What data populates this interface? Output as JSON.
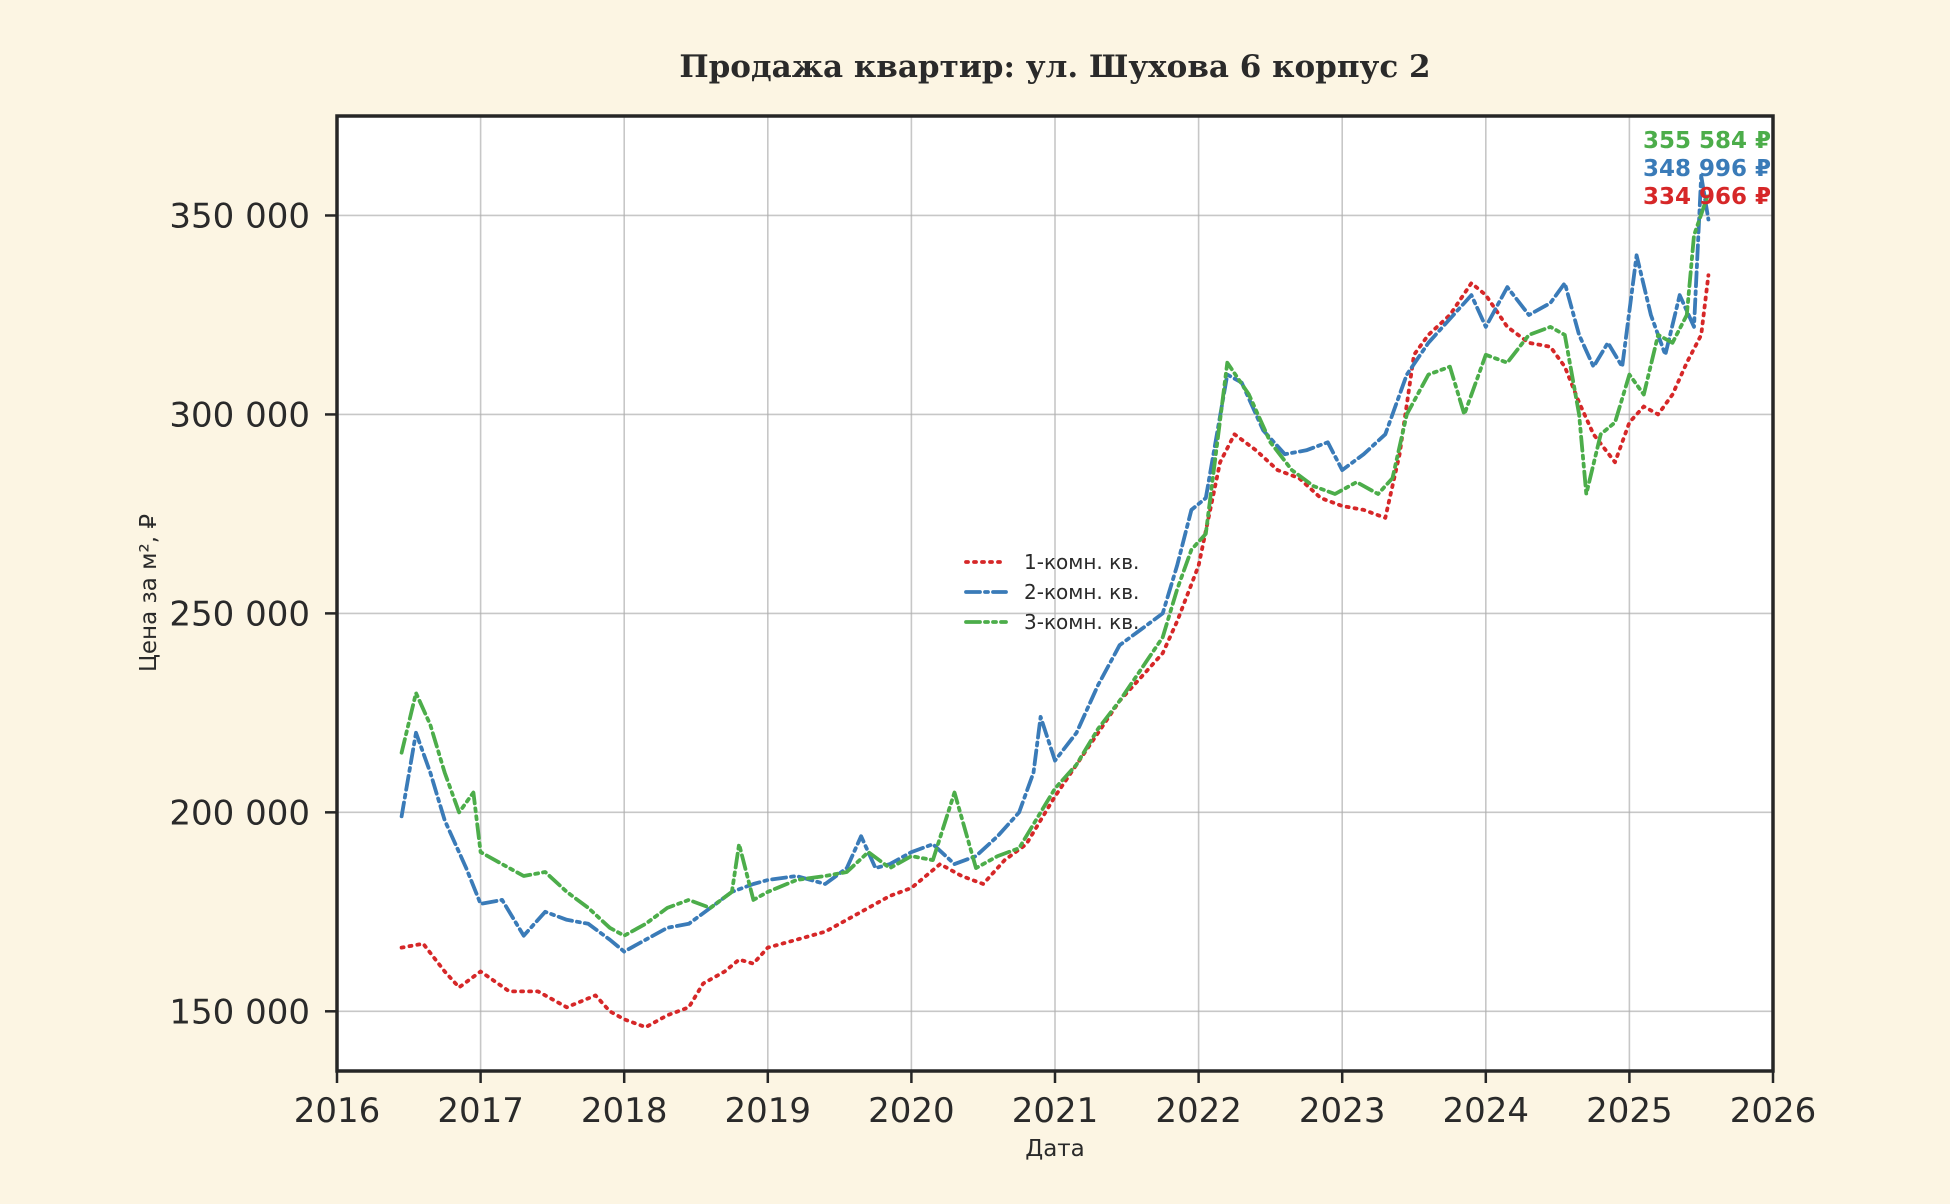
{
  "chart_data": {
    "type": "line",
    "title": "Продажа квартир: ул. Шухова 6 корпус 2",
    "xlabel": "Дата",
    "ylabel": "Цена за м², ₽",
    "xlim": [
      2016,
      2026
    ],
    "ylim": [
      135000,
      375000
    ],
    "grid": true,
    "legend_position": "center",
    "x_ticks": [
      2016,
      2017,
      2018,
      2019,
      2020,
      2021,
      2022,
      2023,
      2024,
      2025,
      2026
    ],
    "x_tick_labels": [
      "2016",
      "2017",
      "2018",
      "2019",
      "2020",
      "2021",
      "2022",
      "2023",
      "2024",
      "2025",
      "2026"
    ],
    "y_ticks": [
      150000,
      200000,
      250000,
      300000,
      350000
    ],
    "y_tick_labels": [
      "150 000",
      "200 000",
      "250 000",
      "300 000",
      "350 000"
    ],
    "series": [
      {
        "name": "1-комн. кв.",
        "color": "#d62728",
        "style": "dotted",
        "end_label": "334 966 ₽",
        "x": [
          2016.45,
          2016.6,
          2016.75,
          2016.85,
          2017.0,
          2017.2,
          2017.4,
          2017.6,
          2017.8,
          2017.9,
          2018.0,
          2018.15,
          2018.3,
          2018.45,
          2018.55,
          2018.7,
          2018.8,
          2018.9,
          2019.0,
          2019.2,
          2019.4,
          2019.55,
          2019.7,
          2019.85,
          2020.0,
          2020.2,
          2020.35,
          2020.5,
          2020.65,
          2020.8,
          2020.9,
          2021.0,
          2021.15,
          2021.3,
          2021.45,
          2021.6,
          2021.75,
          2021.85,
          2022.0,
          2022.15,
          2022.25,
          2022.4,
          2022.55,
          2022.7,
          2022.85,
          2023.0,
          2023.15,
          2023.3,
          2023.4,
          2023.5,
          2023.6,
          2023.75,
          2023.9,
          2024.0,
          2024.15,
          2024.3,
          2024.45,
          2024.55,
          2024.65,
          2024.75,
          2024.9,
          2025.0,
          2025.1,
          2025.2,
          2025.3,
          2025.4,
          2025.5,
          2025.55
        ],
        "y": [
          166000,
          167000,
          160000,
          156000,
          160000,
          155000,
          155000,
          151000,
          154000,
          150000,
          148000,
          146000,
          149000,
          151000,
          157000,
          160000,
          163000,
          162000,
          166000,
          168000,
          170000,
          173000,
          176000,
          179000,
          181000,
          187000,
          184000,
          182000,
          188000,
          192000,
          198000,
          204000,
          212000,
          220000,
          228000,
          234000,
          240000,
          248000,
          262000,
          288000,
          295000,
          291000,
          286000,
          284000,
          279000,
          277000,
          276000,
          274000,
          290000,
          315000,
          320000,
          325000,
          333000,
          330000,
          322000,
          318000,
          317000,
          312000,
          303000,
          295000,
          288000,
          298000,
          302000,
          300000,
          305000,
          313000,
          320000,
          334966
        ]
      },
      {
        "name": "2-комн. кв.",
        "color": "#3a7bb8",
        "style": "dash-dot",
        "end_label": "348 996 ₽",
        "x": [
          2016.45,
          2016.55,
          2016.65,
          2016.75,
          2016.9,
          2017.0,
          2017.15,
          2017.3,
          2017.45,
          2017.6,
          2017.75,
          2017.9,
          2018.0,
          2018.15,
          2018.3,
          2018.45,
          2018.6,
          2018.75,
          2018.9,
          2019.0,
          2019.2,
          2019.4,
          2019.55,
          2019.65,
          2019.75,
          2019.85,
          2020.0,
          2020.15,
          2020.3,
          2020.45,
          2020.6,
          2020.75,
          2020.85,
          2020.9,
          2021.0,
          2021.15,
          2021.3,
          2021.45,
          2021.6,
          2021.75,
          2021.85,
          2021.95,
          2022.05,
          2022.2,
          2022.3,
          2022.45,
          2022.6,
          2022.75,
          2022.9,
          2023.0,
          2023.15,
          2023.3,
          2023.45,
          2023.6,
          2023.75,
          2023.9,
          2024.0,
          2024.15,
          2024.3,
          2024.45,
          2024.55,
          2024.65,
          2024.75,
          2024.85,
          2024.95,
          2025.05,
          2025.15,
          2025.25,
          2025.35,
          2025.45,
          2025.5,
          2025.55
        ],
        "y": [
          199000,
          220000,
          210000,
          198000,
          186000,
          177000,
          178000,
          169000,
          175000,
          173000,
          172000,
          168000,
          165000,
          168000,
          171000,
          172000,
          176000,
          180000,
          182000,
          183000,
          184000,
          182000,
          186000,
          194000,
          186000,
          187000,
          190000,
          192000,
          187000,
          189000,
          194000,
          200000,
          210000,
          224000,
          213000,
          220000,
          232000,
          242000,
          246000,
          250000,
          262000,
          276000,
          279000,
          310000,
          308000,
          296000,
          290000,
          291000,
          293000,
          286000,
          290000,
          295000,
          310000,
          318000,
          324000,
          330000,
          322000,
          332000,
          325000,
          328000,
          333000,
          320000,
          312000,
          318000,
          312000,
          340000,
          325000,
          315000,
          330000,
          322000,
          360000,
          348996
        ]
      },
      {
        "name": "3-комн. кв.",
        "color": "#4cad4a",
        "style": "dash-dot-dot",
        "end_label": "355 584 ₽",
        "x": [
          2016.45,
          2016.55,
          2016.65,
          2016.75,
          2016.85,
          2016.95,
          2017.0,
          2017.15,
          2017.3,
          2017.45,
          2017.6,
          2017.75,
          2017.9,
          2018.0,
          2018.15,
          2018.3,
          2018.45,
          2018.6,
          2018.75,
          2018.8,
          2018.9,
          2019.0,
          2019.2,
          2019.4,
          2019.55,
          2019.7,
          2019.85,
          2020.0,
          2020.15,
          2020.3,
          2020.45,
          2020.6,
          2020.75,
          2020.9,
          2021.0,
          2021.15,
          2021.3,
          2021.45,
          2021.6,
          2021.75,
          2021.85,
          2021.95,
          2022.05,
          2022.2,
          2022.35,
          2022.5,
          2022.65,
          2022.8,
          2022.95,
          2023.1,
          2023.25,
          2023.35,
          2023.45,
          2023.6,
          2023.75,
          2023.85,
          2024.0,
          2024.15,
          2024.3,
          2024.45,
          2024.55,
          2024.65,
          2024.7,
          2024.8,
          2024.9,
          2025.0,
          2025.1,
          2025.2,
          2025.3,
          2025.4,
          2025.45,
          2025.55
        ],
        "y": [
          215000,
          230000,
          222000,
          210000,
          200000,
          205000,
          190000,
          187000,
          184000,
          185000,
          180000,
          176000,
          171000,
          169000,
          172000,
          176000,
          178000,
          176000,
          180000,
          192000,
          178000,
          180000,
          183000,
          184000,
          185000,
          190000,
          186000,
          189000,
          188000,
          205000,
          186000,
          189000,
          191000,
          200000,
          206000,
          212000,
          221000,
          228000,
          236000,
          244000,
          256000,
          266000,
          270000,
          313000,
          305000,
          293000,
          286000,
          282000,
          280000,
          283000,
          280000,
          284000,
          300000,
          310000,
          312000,
          300000,
          315000,
          313000,
          320000,
          322000,
          320000,
          300000,
          280000,
          295000,
          298000,
          310000,
          305000,
          320000,
          318000,
          325000,
          345000,
          355584
        ]
      }
    ]
  }
}
